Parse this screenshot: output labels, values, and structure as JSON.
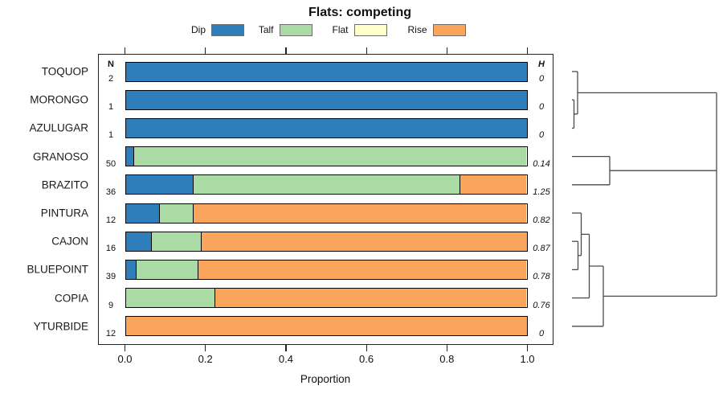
{
  "title": "Flats: competing",
  "legend": {
    "items": [
      {
        "label": "Dip",
        "color": "#2E7EBC"
      },
      {
        "label": "Talf",
        "color": "#ABDBA4"
      },
      {
        "label": "Flat",
        "color": "#FFFFCB"
      },
      {
        "label": "Rise",
        "color": "#F9A55C"
      }
    ]
  },
  "table": {
    "n_header": "N",
    "h_header": "H"
  },
  "x_axis": {
    "label": "Proportion",
    "tick_values": [
      0,
      0.2,
      0.4,
      0.6,
      0.8,
      1
    ],
    "tick_labels": [
      "0.0",
      "0.2",
      "0.4",
      "0.6",
      "0.8",
      "1.0"
    ]
  },
  "chart_data": {
    "type": "bar",
    "orientation": "horizontal-stacked",
    "title": "Flats: competing",
    "xlabel": "Proportion",
    "xlim": [
      0,
      1
    ],
    "grid": false,
    "legend_position": "top",
    "categories": [
      "TOQUOP",
      "MORONGO",
      "AZULUGAR",
      "GRANOSO",
      "BRAZITO",
      "PINTURA",
      "CAJON",
      "BLUEPOINT",
      "COPIA",
      "YTURBIDE"
    ],
    "n_values": [
      2,
      1,
      1,
      50,
      36,
      12,
      16,
      39,
      9,
      12
    ],
    "h_values": [
      "0",
      "0",
      "0",
      "0.14",
      "1.25",
      "0.82",
      "0.87",
      "0.78",
      "0.76",
      "0"
    ],
    "series": [
      {
        "name": "Dip",
        "values": [
          1,
          1,
          1,
          0.02,
          0.167,
          0.083,
          0.0625,
          0.0256,
          0,
          0
        ]
      },
      {
        "name": "Talf",
        "values": [
          0,
          0,
          0,
          0.98,
          0.666,
          0.084,
          0.125,
          0.1538,
          0.2222,
          0
        ]
      },
      {
        "name": "Flat",
        "values": [
          0,
          0,
          0,
          0,
          0,
          0,
          0,
          0,
          0,
          0
        ]
      },
      {
        "name": "Rise",
        "values": [
          0,
          0,
          0,
          0,
          0.167,
          0.833,
          0.8125,
          0.8206,
          0.7778,
          1
        ]
      }
    ],
    "dendrogram": {
      "segments": [
        [
          712,
          89,
          719,
          89
        ],
        [
          712,
          124.2,
          714.5,
          124.2
        ],
        [
          712,
          159.4,
          714.5,
          159.4
        ],
        [
          714.5,
          124.2,
          714.5,
          159.4
        ],
        [
          714.5,
          141.8,
          719,
          141.8
        ],
        [
          719,
          89,
          719,
          141.8
        ],
        [
          719,
          115.4,
          892,
          115.4
        ],
        [
          712,
          194.6,
          759,
          194.6
        ],
        [
          712,
          229.8,
          759,
          229.8
        ],
        [
          759,
          194.6,
          759,
          229.8
        ],
        [
          759,
          212.2,
          892,
          212.2
        ],
        [
          712,
          265,
          723.5,
          265
        ],
        [
          712,
          300.2,
          719.5,
          300.2
        ],
        [
          712,
          335.4,
          719.5,
          335.4
        ],
        [
          719.5,
          300.2,
          719.5,
          335.4
        ],
        [
          719.5,
          317.8,
          723.5,
          317.8
        ],
        [
          723.5,
          265,
          723.5,
          317.8
        ],
        [
          723.5,
          291.4,
          733.5,
          291.4
        ],
        [
          712,
          370.6,
          733.5,
          370.6
        ],
        [
          733.5,
          291.4,
          733.5,
          370.6
        ],
        [
          733.5,
          331,
          751,
          331
        ],
        [
          712,
          405.8,
          751,
          405.8
        ],
        [
          751,
          331,
          751,
          405.8
        ],
        [
          751,
          368.4,
          892,
          368.4
        ],
        [
          892,
          115.4,
          892,
          368.4
        ]
      ]
    }
  }
}
